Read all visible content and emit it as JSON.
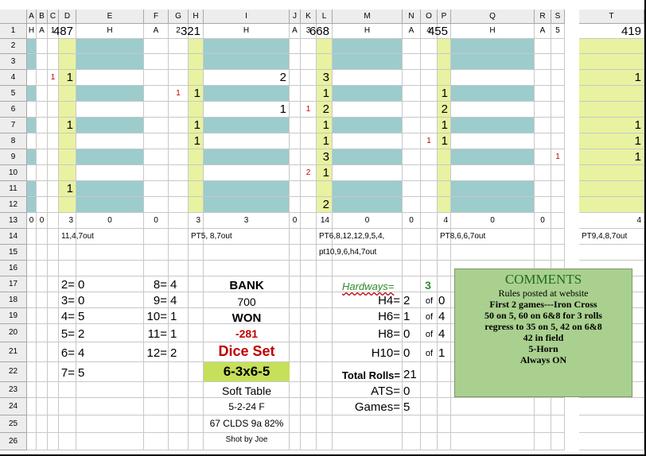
{
  "columns": [
    "A",
    "B",
    "C",
    "D",
    "E",
    "F",
    "G",
    "H",
    "I",
    "J",
    "K",
    "L",
    "M",
    "N",
    "O",
    "P",
    "Q",
    "R",
    "S",
    "T"
  ],
  "rows": [
    "1",
    "2",
    "3",
    "4",
    "5",
    "6",
    "7",
    "8",
    "9",
    "10",
    "11",
    "12",
    "13",
    "14",
    "15",
    "16",
    "17",
    "18",
    "19",
    "20",
    "21",
    "22",
    "23",
    "24",
    "25",
    "26"
  ],
  "cells": {
    "A1": "H",
    "B1": "A",
    "C1": "1",
    "D1": "487",
    "E1": "H",
    "F1": "A",
    "G1": "2",
    "H1": "321",
    "I1": "H",
    "J1": "A",
    "K1": "3",
    "L1": "668",
    "M1": "H",
    "N1": "A",
    "O1": "4",
    "P1": "455",
    "Q1": "H",
    "R1": "A",
    "S1": "5",
    "T1": "419",
    "C4": "1",
    "D4": "1",
    "I4": "2",
    "L4": "3",
    "T4": "1",
    "G5": "1",
    "H5": "1",
    "L5": "1",
    "P5": "1",
    "I6": "1",
    "K6": "1",
    "L6": "2",
    "P6": "2",
    "D7": "1",
    "H7": "1",
    "L7": "1",
    "P7": "1",
    "T7": "1",
    "H8": "1",
    "L8": "1",
    "O8": "1",
    "P8": "1",
    "T8": "1",
    "L9": "3",
    "S9": "1",
    "T9": "1",
    "K10": "2",
    "L10": "1",
    "D11": "1",
    "L12": "2",
    "A13": "0",
    "B13": "0",
    "D13": "3",
    "E13": "0",
    "F13": "0",
    "H13": "3",
    "I13": "3",
    "J13": "0",
    "L13": "14",
    "M13": "0",
    "N13": "0",
    "P13": "4",
    "Q13": "0",
    "R13": "0",
    "T13": "4",
    "D14": "11,4,7out",
    "H14": "PT5, 8,7out",
    "L14": "PT6,8,12,12,9,5,4,",
    "P14": "PT8,6,6,7out",
    "T14": "PT9,4,8,7out",
    "L15": "pt10,9,6,h4,7out"
  },
  "stats": {
    "left": [
      {
        "label": "2=",
        "value": "0"
      },
      {
        "label": "3=",
        "value": "0"
      },
      {
        "label": "4=",
        "value": "5"
      },
      {
        "label": "5=",
        "value": "2"
      },
      {
        "label": "6=",
        "value": "4"
      },
      {
        "label": "7=",
        "value": "5"
      }
    ],
    "right": [
      {
        "label": "8=",
        "value": "4"
      },
      {
        "label": "9=",
        "value": "4"
      },
      {
        "label": "10=",
        "value": "1"
      },
      {
        "label": "11=",
        "value": "1"
      },
      {
        "label": "12=",
        "value": "2"
      }
    ]
  },
  "center": {
    "bank_label": "BANK",
    "bank_value": "700",
    "won_label": "WON",
    "won_value": "-281",
    "dice_set_label": "Dice Set",
    "dice_set_value": "6-3x6-5",
    "table": "Soft Table",
    "date": "5-2-24 F",
    "clds": "67 CLDS 9a 82%",
    "shot_by": "Shot by Joe"
  },
  "hardways": {
    "label": "Hardways=",
    "count": "3",
    "of": "of",
    "rows": [
      {
        "label": "H4=",
        "value": "2",
        "total": "0"
      },
      {
        "label": "H6=",
        "value": "1",
        "total": "4"
      },
      {
        "label": "H8=",
        "value": "0",
        "total": "4"
      },
      {
        "label": "H10=",
        "value": "0",
        "total": "1"
      }
    ]
  },
  "totals": {
    "total_rolls_label": "Total Rolls=",
    "total_rolls": "21",
    "ats_label": "ATS=",
    "ats": "0",
    "games_label": "Games=",
    "games": "5"
  },
  "comments": {
    "title": "COMMENTS",
    "lines": [
      {
        "text": "Rules posted at website",
        "bold": false
      },
      {
        "text": "First 2 games---Iron Cross",
        "bold": true
      },
      {
        "text": "50 on 5, 60 on 6&8 for 3 rolls",
        "bold": true
      },
      {
        "text": "regress to 35 on 5, 42 on 6&8",
        "bold": true
      },
      {
        "text": "42 in field",
        "bold": true
      },
      {
        "text": "5-Horn",
        "bold": true
      },
      {
        "text": "Always ON",
        "bold": true
      }
    ]
  },
  "colors": {
    "yellow": "#e8f2a1",
    "teal": "#9ccccc",
    "red": "#c00000",
    "green_title": "#1f6b1f",
    "hardways_green": "#2e8b2e",
    "dice_set_bg": "#c6e05a"
  }
}
